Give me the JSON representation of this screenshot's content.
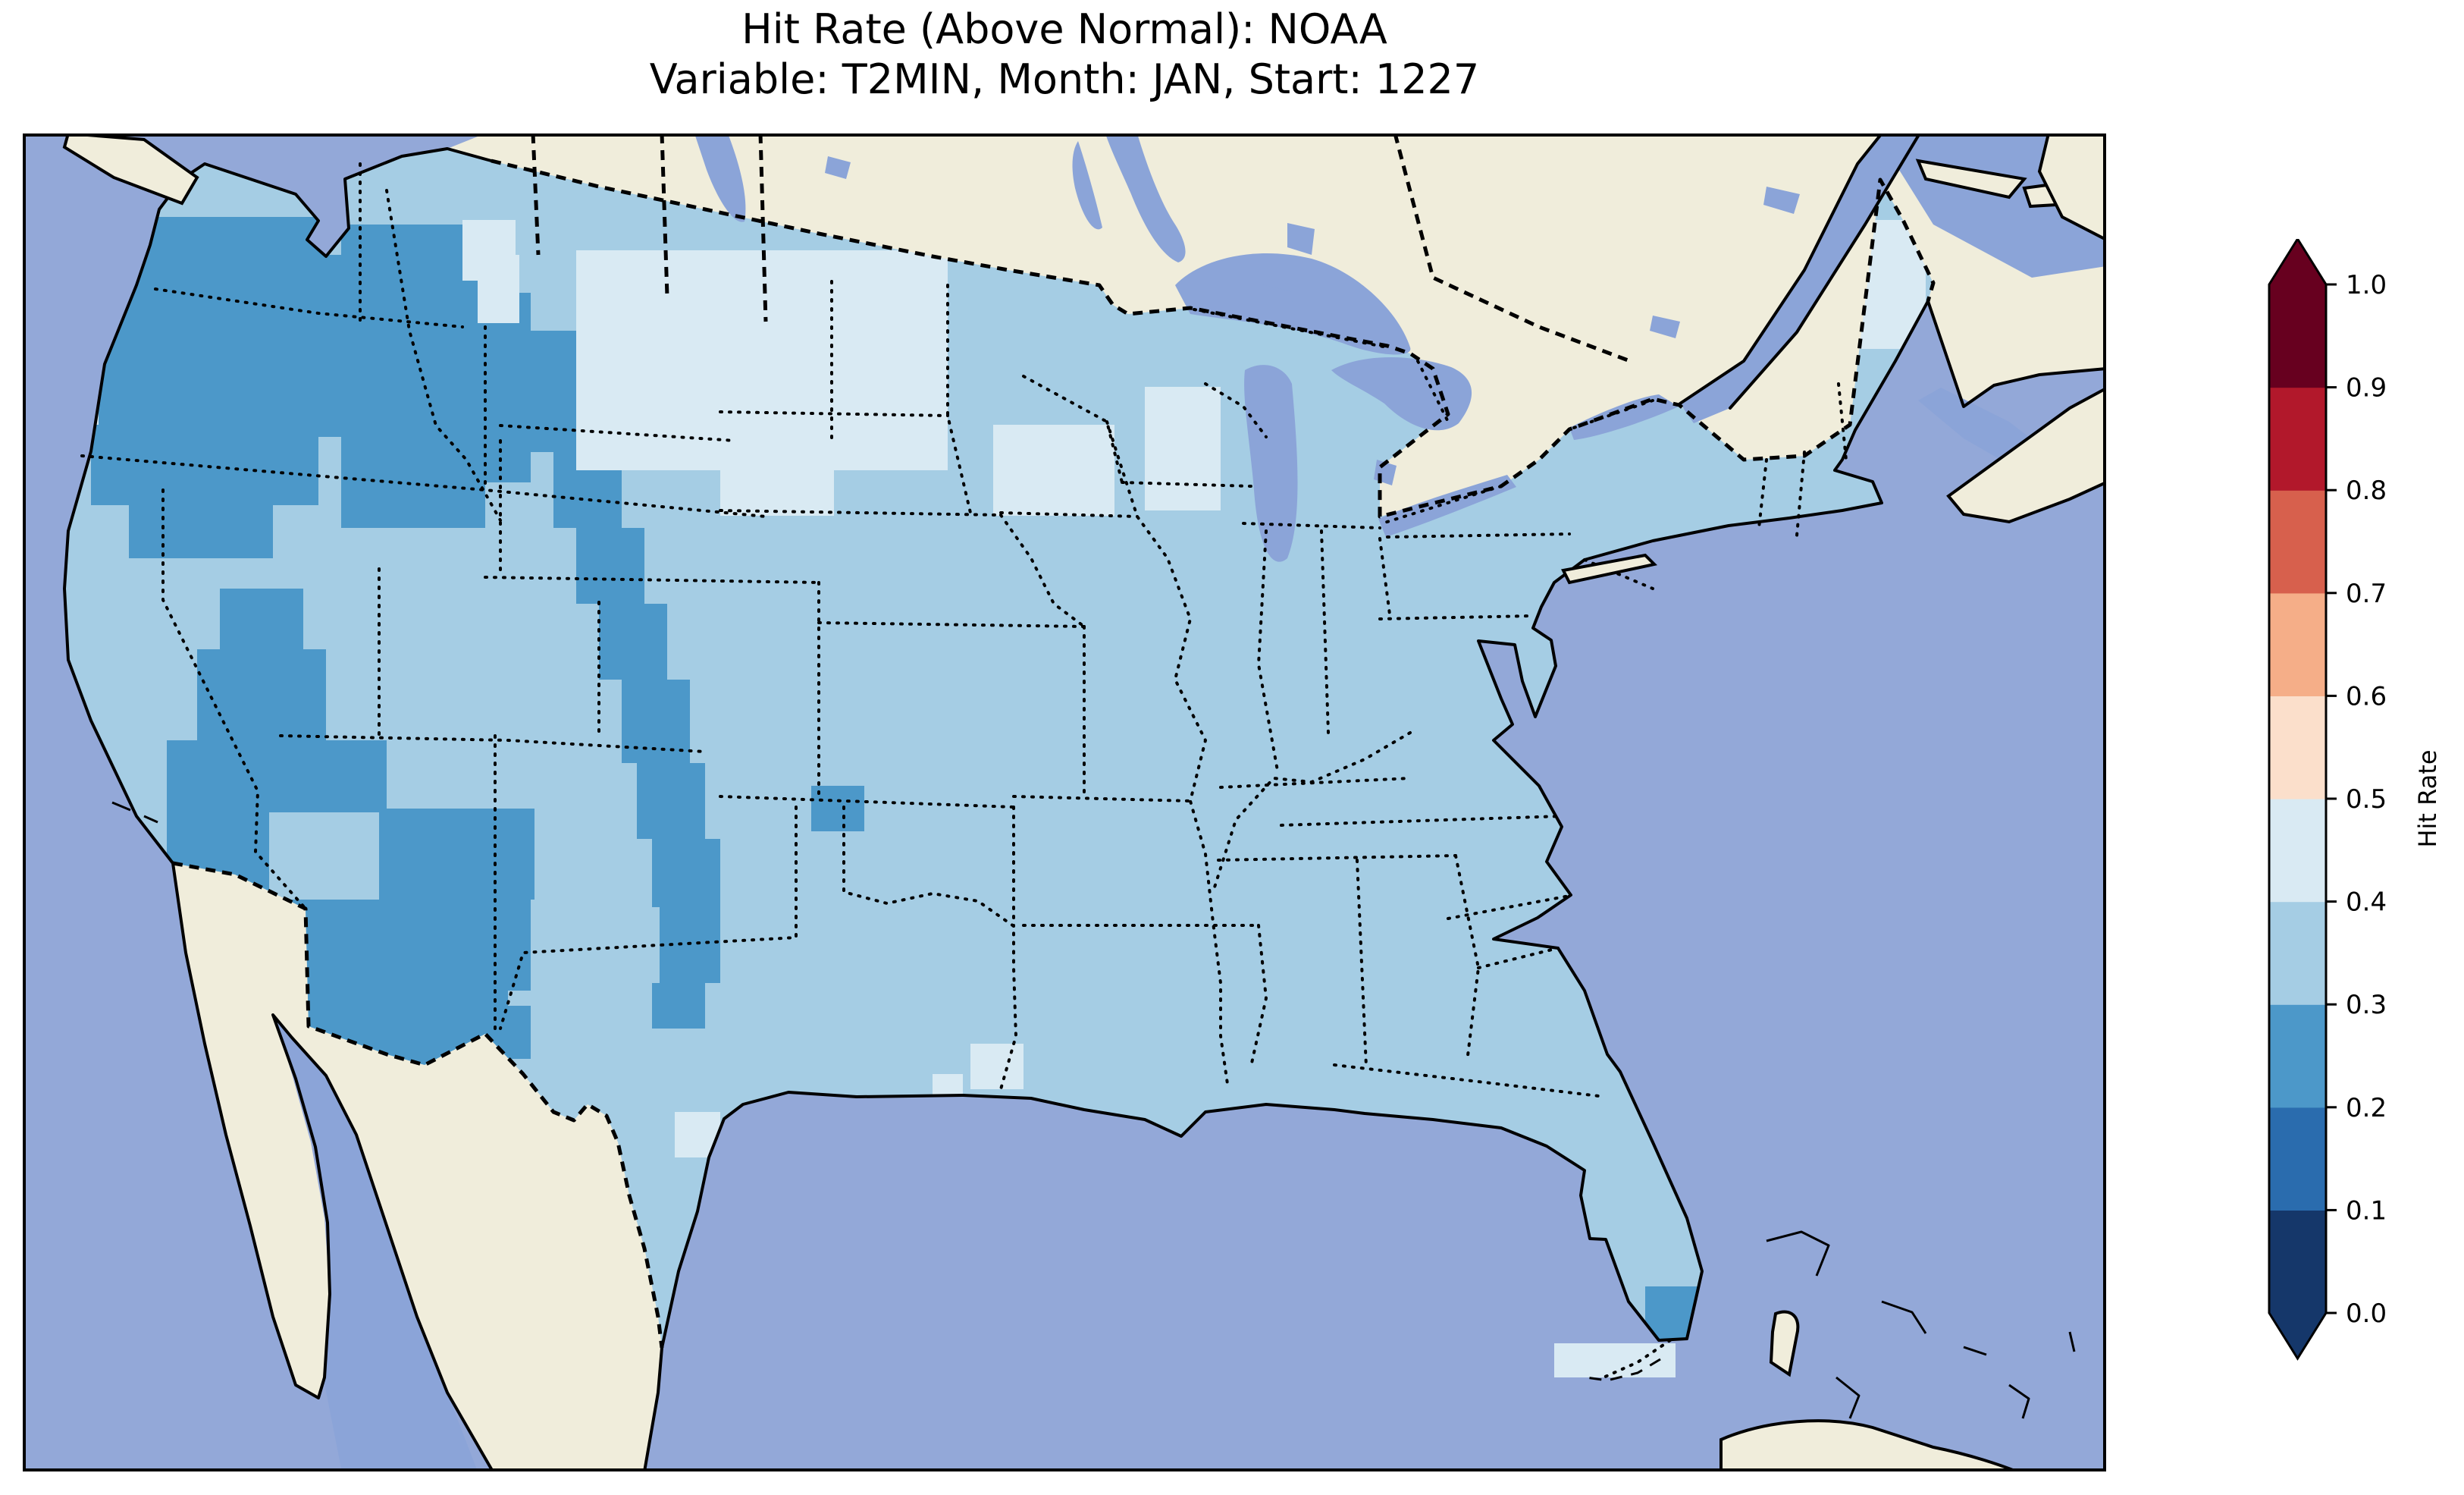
{
  "title": {
    "line1": "Hit Rate (Above Normal): NOAA",
    "line2": "Variable: T2MIN, Month: JAN, Start: 1227"
  },
  "colorbar": {
    "label": "Hit Rate",
    "tick_labels_top_to_bottom": [
      "1.0",
      "0.9",
      "0.8",
      "0.7",
      "0.6",
      "0.5",
      "0.4",
      "0.3",
      "0.2",
      "0.1",
      "0.0"
    ],
    "segment_colors_bottom_to_top": [
      "#15376a",
      "#2a6cae",
      "#4c98c9",
      "#a5cde4",
      "#d9eaf3",
      "#fbdfcb",
      "#f5ae88",
      "#d7604d",
      "#b2182b",
      "#67001f"
    ],
    "extend_min_color": "#15376a",
    "extend_max_color": "#67001f",
    "range": [
      0.0,
      1.0
    ]
  },
  "map": {
    "colors": {
      "ocean": "#93a8d8",
      "land": "#f0eddb",
      "water_inland": "#8ba4d8",
      "coast": "#000000"
    },
    "bin_colors": {
      "2": "#4c98c9",
      "3": "#a5cde4",
      "4": "#d9eaf3"
    },
    "base_bin": "3",
    "field_patches": [
      {
        "bin": "2",
        "clip": true,
        "rects": [
          [
            55,
            110,
            340,
            100
          ],
          [
            55,
            160,
            430,
            120
          ],
          [
            55,
            280,
            390,
            120
          ],
          [
            90,
            400,
            300,
            90
          ],
          [
            140,
            490,
            190,
            70
          ],
          [
            420,
            120,
            190,
            400
          ],
          [
            610,
            210,
            60,
            250
          ],
          [
            260,
            600,
            110,
            90
          ],
          [
            640,
            260,
            90,
            80
          ],
          [
            670,
            340,
            90,
            80
          ],
          [
            700,
            420,
            90,
            100
          ],
          [
            730,
            520,
            90,
            100
          ],
          [
            760,
            620,
            90,
            100
          ],
          [
            790,
            720,
            90,
            110
          ],
          [
            810,
            830,
            90,
            100
          ],
          [
            830,
            930,
            90,
            90
          ],
          [
            840,
            1020,
            80,
            100
          ],
          [
            830,
            1120,
            70,
            60
          ],
          [
            1040,
            860,
            70,
            60
          ],
          [
            230,
            680,
            170,
            120
          ],
          [
            190,
            800,
            290,
            95
          ],
          [
            190,
            895,
            135,
            230
          ],
          [
            470,
            890,
            205,
            120
          ],
          [
            190,
            1010,
            480,
            120
          ],
          [
            300,
            1130,
            340,
            100
          ],
          [
            560,
            1150,
            110,
            70
          ],
          [
            2140,
            1520,
            95,
            70
          ]
        ]
      },
      {
        "bin": "3",
        "clip": true,
        "rects": [
          [
            325,
            895,
            145,
            115
          ]
        ]
      },
      {
        "bin": "4",
        "clip": true,
        "rects": [
          [
            580,
            114,
            70,
            80
          ],
          [
            600,
            160,
            55,
            90
          ],
          [
            730,
            154,
            490,
            290
          ],
          [
            920,
            444,
            150,
            60
          ],
          [
            1220,
            14,
            410,
            140
          ],
          [
            1280,
            384,
            160,
            120
          ],
          [
            1480,
            334,
            100,
            163
          ],
          [
            2400,
            114,
            110,
            170
          ],
          [
            30,
            264,
            70,
            120
          ],
          [
            860,
            1290,
            60,
            60
          ],
          [
            1250,
            1200,
            70,
            60
          ],
          [
            1200,
            1240,
            40,
            40
          ]
        ]
      },
      {
        "bin": "4",
        "clip": false,
        "rects": [
          [
            2020,
            1595,
            160,
            45
          ]
        ]
      }
    ]
  }
}
